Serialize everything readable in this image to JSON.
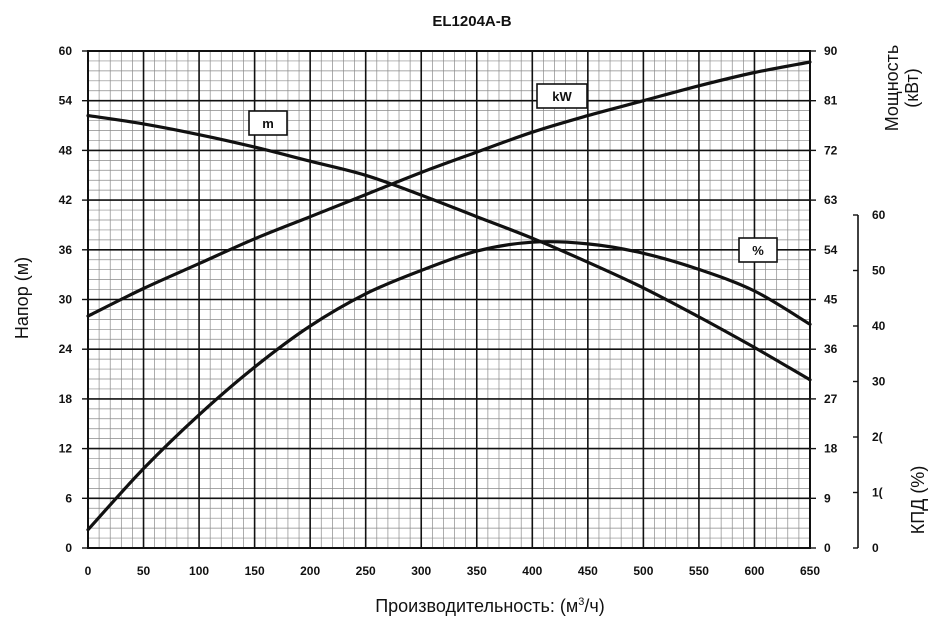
{
  "chart_data": {
    "type": "line",
    "title": "EL1204A-B",
    "xlabel": "Производительность: (м",
    "xlabel_sup": "3",
    "xlabel_tail": "/ч)",
    "ylabel_left": "Напор (м)",
    "ylabel_right_power_line1": "Мощность",
    "ylabel_right_power_line2": "(кВт)",
    "ylabel_right_eff": "КПД (%)",
    "xlim": [
      0,
      650
    ],
    "ylim_head": [
      0,
      60
    ],
    "ylim_power": [
      0,
      90
    ],
    "ylim_eff": [
      0,
      60
    ],
    "x_ticks": [
      "0",
      "50",
      "100",
      "150",
      "200",
      "250",
      "300",
      "350",
      "400",
      "450",
      "500",
      "550",
      "600",
      "650"
    ],
    "head_ticks": [
      "0",
      "6",
      "12",
      "18",
      "24",
      "30",
      "36",
      "42",
      "48",
      "54",
      "60"
    ],
    "power_ticks": [
      "0",
      "9",
      "18",
      "27",
      "36",
      "45",
      "54",
      "63",
      "72",
      "81",
      "90"
    ],
    "eff_ticks": [
      "0",
      "1(",
      "2(",
      "30",
      "40",
      "50",
      "60"
    ],
    "grid": true,
    "series": [
      {
        "name": "m",
        "axis": "head",
        "x": [
          0,
          50,
          100,
          150,
          200,
          250,
          300,
          350,
          400,
          450,
          500,
          550,
          600,
          650
        ],
        "y": [
          52.2,
          51.2,
          49.9,
          48.4,
          46.7,
          45.0,
          42.6,
          40.0,
          37.4,
          34.5,
          31.4,
          27.9,
          24.2,
          20.3
        ]
      },
      {
        "name": "kW",
        "axis": "power",
        "x": [
          0,
          50,
          100,
          150,
          200,
          250,
          300,
          350,
          400,
          450,
          500,
          550,
          600,
          650
        ],
        "y": [
          42.0,
          47.0,
          51.5,
          56.0,
          60.0,
          64.0,
          68.0,
          71.7,
          75.3,
          78.3,
          81.0,
          83.7,
          86.1,
          88.0
        ]
      },
      {
        "name": "%",
        "axis": "eff",
        "x": [
          0,
          50,
          100,
          150,
          200,
          250,
          300,
          350,
          400,
          450,
          500,
          550,
          600,
          650
        ],
        "y": [
          3.3,
          14.3,
          24.0,
          32.6,
          40.0,
          45.8,
          50.0,
          53.5,
          55.1,
          54.8,
          53.1,
          50.2,
          46.3,
          40.3
        ]
      }
    ]
  }
}
